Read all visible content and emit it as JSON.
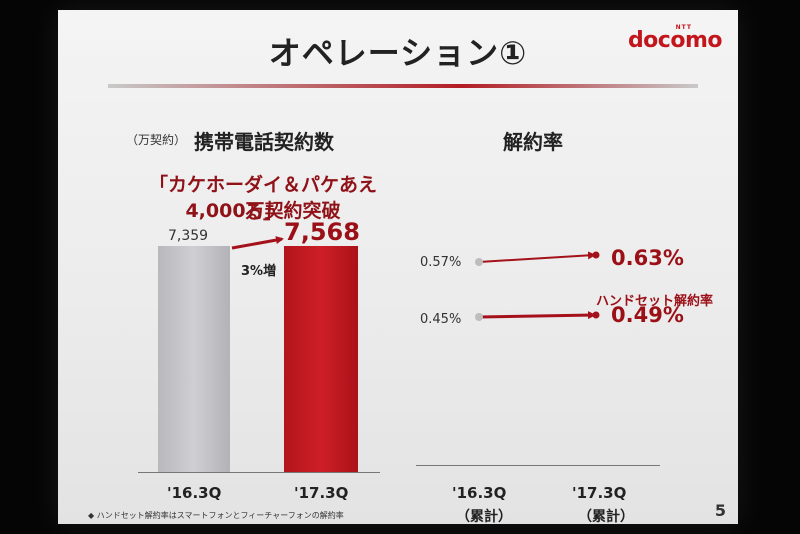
{
  "slide": {
    "title": "オペレーション①",
    "brand": {
      "name": "docomo",
      "sup": "NTT"
    },
    "unit": "（万契約）",
    "left_heading": "携帯電話契約数",
    "right_heading": "解約率",
    "highlight_line1": "「カケホーダイ＆パケあえる」",
    "highlight_line2": "4,000万契約突破",
    "growth_label": "3%増",
    "handset_label": "ハンドセット解約率",
    "footnote": "◆ ハンドセット解約率はスマートフォンとフィーチャーフォンの解約率",
    "page_number": "5",
    "colors": {
      "accent": "#b31c24",
      "gray_bar": "#c3c3c7"
    }
  },
  "chart_data": [
    {
      "type": "bar",
      "title": "携帯電話契約数",
      "unit": "（万契約）",
      "categories": [
        "'16.3Q",
        "'17.3Q"
      ],
      "values": [
        7359,
        7568
      ],
      "value_labels": [
        "7,359",
        "7,568"
      ]
    },
    {
      "type": "line",
      "title": "解約率",
      "categories": [
        "'16.3Q",
        "'17.3Q"
      ],
      "category_sublabels": [
        "（累計）",
        "（累計）"
      ],
      "series": [
        {
          "values": [
            0.57,
            0.63
          ],
          "start_label": "0.57%",
          "end_label": "0.63%"
        },
        {
          "name": "ハンドセット解約率",
          "values": [
            0.45,
            0.49
          ],
          "start_label": "0.45%",
          "end_label": "0.49%"
        }
      ]
    }
  ]
}
